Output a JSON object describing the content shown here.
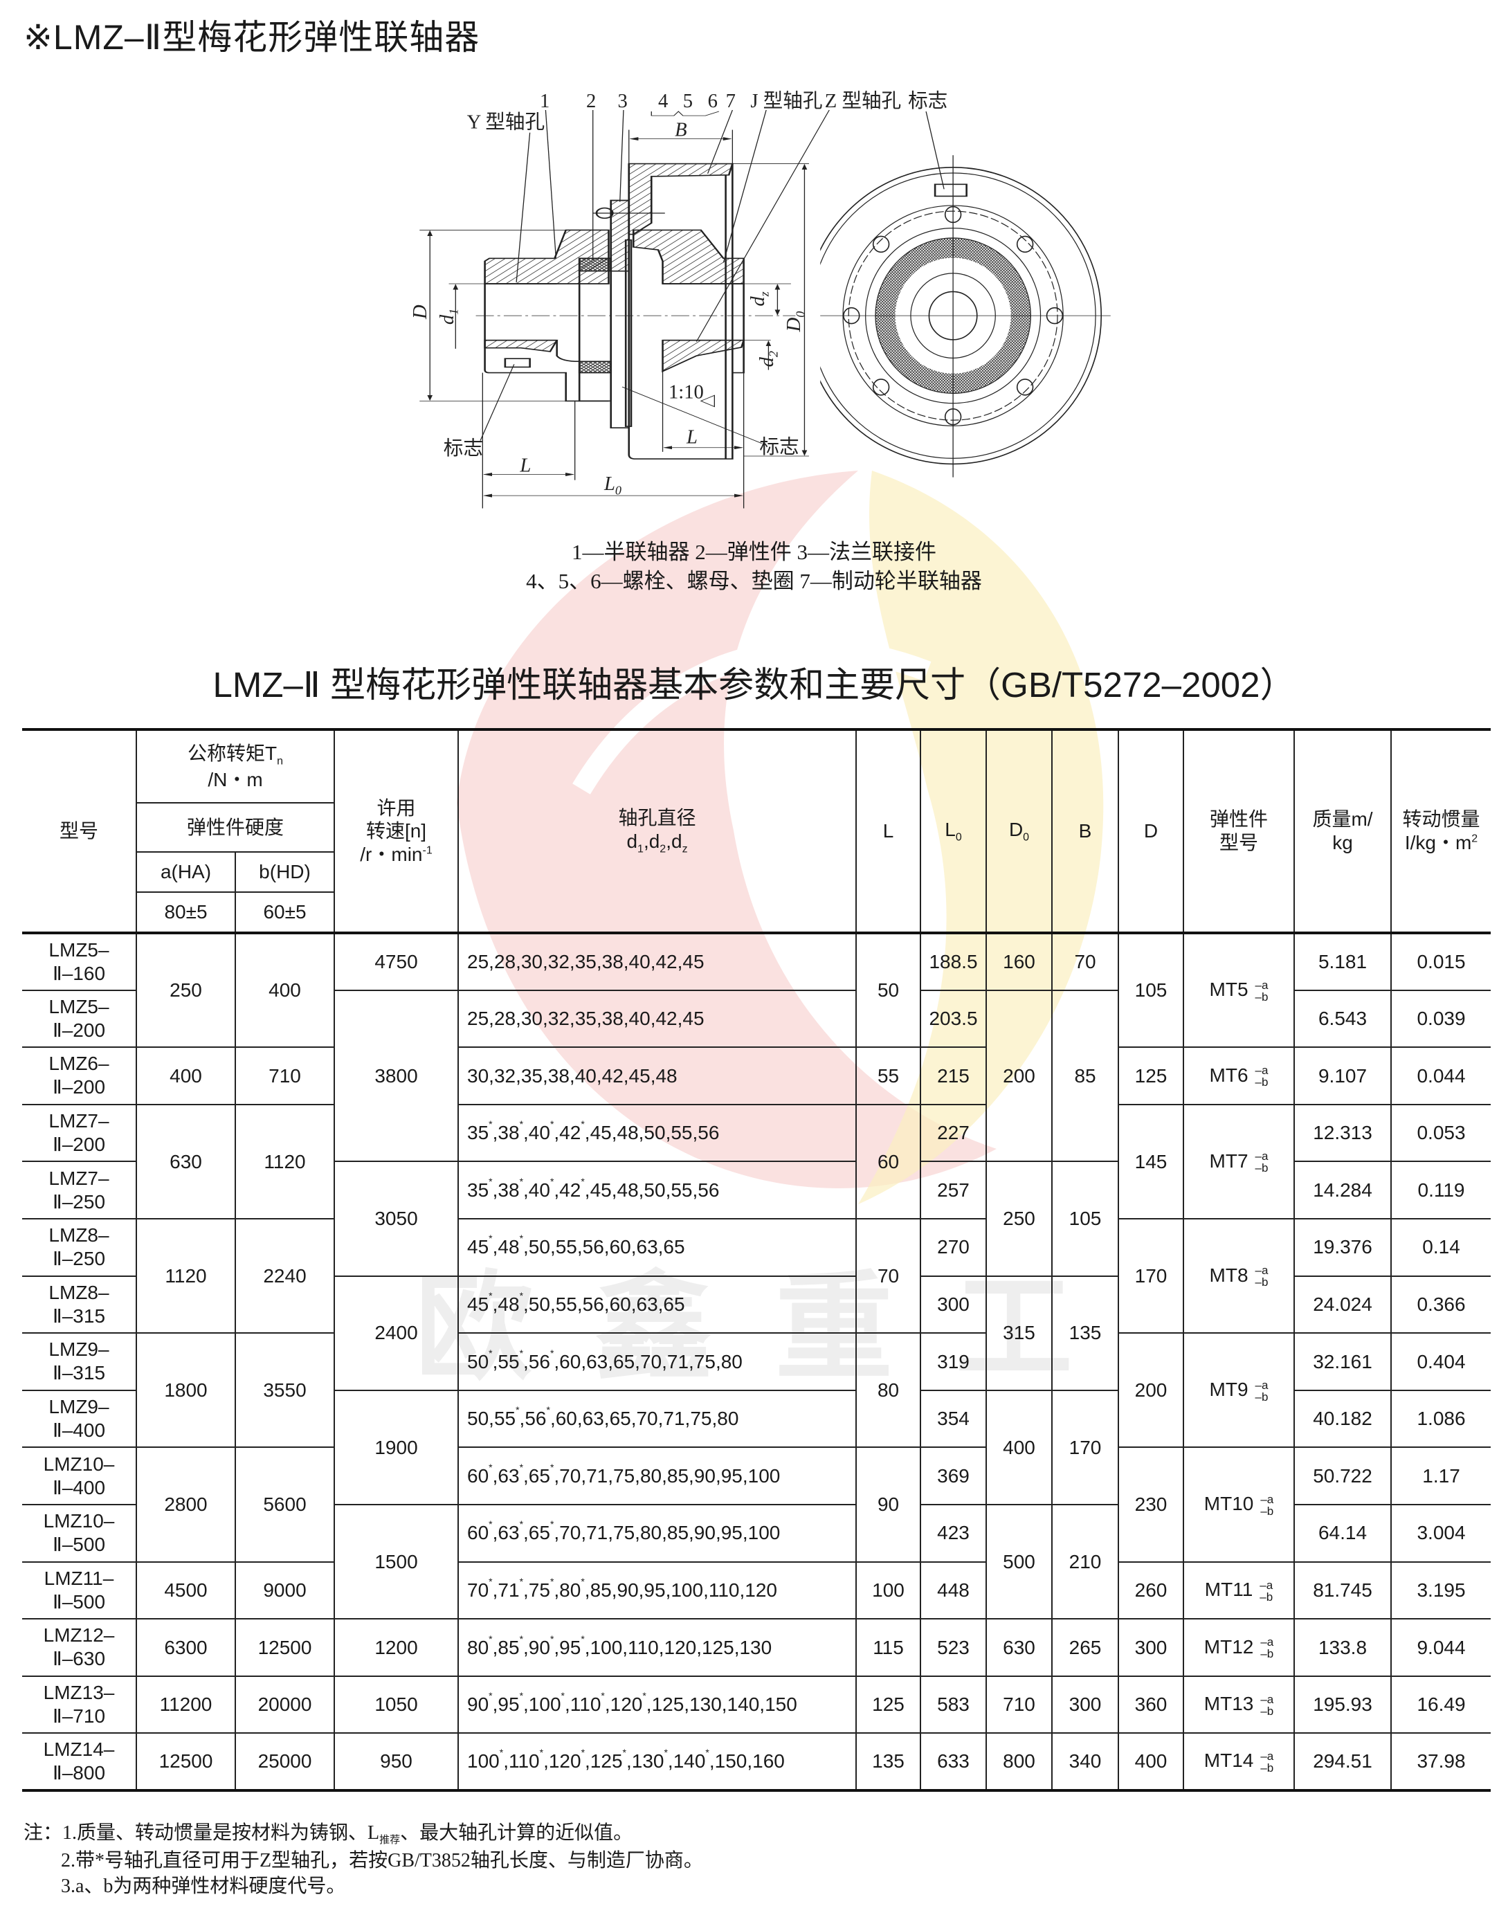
{
  "page_title": "※LMZ–Ⅱ型梅花形弹性联轴器",
  "watermark": {
    "text": "欧鑫重工",
    "logo_colors": [
      "#f6c9c6",
      "#fbefc0"
    ]
  },
  "diagram": {
    "labels": {
      "y_bore": "Y 型轴孔",
      "p1": "1",
      "p2": "2",
      "p3": "3",
      "p4": "4",
      "p5": "5",
      "p6": "6",
      "p7": "7",
      "j_bore": "J 型轴孔",
      "z_bore": "Z 型轴孔",
      "mark_top": "标志",
      "mark_left": "标志",
      "mark_right": "标志",
      "B": "B",
      "D": "D",
      "d1": "d",
      "d1_sub": "1",
      "dz": "d",
      "dz_sub": "z",
      "D0": "D",
      "D0_sub": "0",
      "d2": "d",
      "d2_sub": "2",
      "taper": "1:10",
      "L_left": "L",
      "L_right": "L",
      "L0": "L",
      "L0_sub": "0"
    },
    "legend_line1": "1—半联轴器  2—弹性件  3—法兰联接件",
    "legend_line2": "4、5、6—螺栓、螺母、垫圈   7—制动轮半联轴器"
  },
  "table_title": "LMZ–Ⅱ 型梅花形弹性联轴器基本参数和主要尺寸（GB/T5272–2002）",
  "table": {
    "headers": {
      "model": "型号",
      "torque": "公称转矩T",
      "torque_sub": "n",
      "torque_unit": "/N・m",
      "hardness": "弹性件硬度",
      "a": "a(HA)",
      "b": "b(HD)",
      "a_val": "80±5",
      "b_val": "60±5",
      "speed_1": "许用",
      "speed_2": "转速[n]",
      "speed_3": "/r・min",
      "speed_sup": "-1",
      "bore_1": "轴孔直径",
      "bore_2": "d",
      "bore_subs": [
        "1",
        "2",
        "z"
      ],
      "L": "L",
      "L0": "L",
      "L0_sub": "0",
      "D0": "D",
      "D0_sub": "0",
      "B": "B",
      "D": "D",
      "elastic_1": "弹性件",
      "elastic_2": "型号",
      "mass_1": "质量m/",
      "mass_2": "kg",
      "inertia_1": "转动惯量",
      "inertia_2": "I/kg・m",
      "inertia_sup": "2"
    },
    "columns": [
      "model",
      "torque_a",
      "torque_b",
      "speed",
      "bore_diameters",
      "L",
      "L0",
      "D0",
      "B",
      "D",
      "elastic",
      "mass",
      "inertia"
    ],
    "rows": [
      [
        [
          "LMZ5–",
          "Ⅱ–160"
        ],
        [
          "250",
          2
        ],
        [
          "400",
          2
        ],
        "4750",
        "25,28,30,32,35,38,40,42,45",
        [
          "50",
          2
        ],
        "188.5",
        "160",
        "70",
        [
          "105",
          2
        ],
        {
          "v": "MT5",
          "a": "–a",
          "b": "–b",
          "rs": 2
        },
        "5.181",
        "0.015"
      ],
      [
        [
          "LMZ5–",
          "Ⅱ–200"
        ],
        [
          "3800",
          3
        ],
        "25,28,30,32,35,38,40,42,45",
        "203.5",
        [
          "200",
          3
        ],
        [
          "85",
          3
        ],
        "6.543",
        "0.039"
      ],
      [
        [
          "LMZ6–",
          "Ⅱ–200"
        ],
        "400",
        "710",
        "30,32,35,38,40,42,45,48",
        "55",
        "215",
        "125",
        {
          "v": "MT6",
          "a": "–a",
          "b": "–b",
          "rs": 1
        },
        "9.107",
        "0.044"
      ],
      [
        [
          "LMZ7–",
          "Ⅱ–200"
        ],
        [
          "630",
          2
        ],
        [
          "1120",
          2
        ],
        "35*,38*,40*,42*,45,48,50,55,56",
        [
          "60",
          2
        ],
        "227",
        [
          "145",
          2
        ],
        {
          "v": "MT7",
          "a": "–a",
          "b": "–b",
          "rs": 2
        },
        "12.313",
        "0.053"
      ],
      [
        [
          "LMZ7–",
          "Ⅱ–250"
        ],
        [
          "3050",
          2
        ],
        "35*,38*,40*,42*,45,48,50,55,56",
        "257",
        [
          "250",
          2
        ],
        [
          "105",
          2
        ],
        "14.284",
        "0.119"
      ],
      [
        [
          "LMZ8–",
          "Ⅱ–250"
        ],
        [
          "1120",
          2
        ],
        [
          "2240",
          2
        ],
        "45*,48*,50,55,56,60,63,65",
        [
          "70",
          2
        ],
        "270",
        [
          "170",
          2
        ],
        {
          "v": "MT8",
          "a": "–a",
          "b": "–b",
          "rs": 2
        },
        "19.376",
        "0.14"
      ],
      [
        [
          "LMZ8–",
          "Ⅱ–315"
        ],
        [
          "2400",
          2
        ],
        "45*,48*,50,55,56,60,63,65",
        "300",
        [
          "315",
          2
        ],
        [
          "135",
          2
        ],
        "24.024",
        "0.366"
      ],
      [
        [
          "LMZ9–",
          "Ⅱ–315"
        ],
        [
          "1800",
          2
        ],
        [
          "3550",
          2
        ],
        "50*,55*,56*,60,63,65,70,71,75,80",
        [
          "80",
          2
        ],
        "319",
        [
          "200",
          2
        ],
        {
          "v": "MT9",
          "a": "–a",
          "b": "–b",
          "rs": 2
        },
        "32.161",
        "0.404"
      ],
      [
        [
          "LMZ9–",
          "Ⅱ–400"
        ],
        [
          "1900",
          2
        ],
        "50,55*,56*,60,63,65,70,71,75,80",
        "354",
        [
          "400",
          2
        ],
        [
          "170",
          2
        ],
        "40.182",
        "1.086"
      ],
      [
        [
          "LMZ10–",
          "Ⅱ–400"
        ],
        [
          "2800",
          2
        ],
        [
          "5600",
          2
        ],
        "60*,63*,65*,70,71,75,80,85,90,95,100",
        [
          "90",
          2
        ],
        "369",
        [
          "230",
          2
        ],
        {
          "v": "MT10",
          "a": "–a",
          "b": "–b",
          "rs": 2
        },
        "50.722",
        "1.17"
      ],
      [
        [
          "LMZ10–",
          "Ⅱ–500"
        ],
        [
          "1500",
          2
        ],
        "60*,63*,65*,70,71,75,80,85,90,95,100",
        "423",
        [
          "500",
          2
        ],
        [
          "210",
          2
        ],
        "64.14",
        "3.004"
      ],
      [
        [
          "LMZ11–",
          "Ⅱ–500"
        ],
        "4500",
        "9000",
        "70*,71*,75*,80*,85,90,95,100,110,120",
        "100",
        "448",
        "260",
        {
          "v": "MT11",
          "a": "–a",
          "b": "–b",
          "rs": 1
        },
        "81.745",
        "3.195"
      ],
      [
        [
          "LMZ12–",
          "Ⅱ–630"
        ],
        "6300",
        "12500",
        "1200",
        "80*,85*,90*,95*,100,110,120,125,130",
        "115",
        "523",
        "630",
        "265",
        "300",
        {
          "v": "MT12",
          "a": "–a",
          "b": "–b",
          "rs": 1
        },
        "133.8",
        "9.044"
      ],
      [
        [
          "LMZ13–",
          "Ⅱ–710"
        ],
        "11200",
        "20000",
        "1050",
        "90*,95*,100*,110*,120*,125,130,140,150",
        "125",
        "583",
        "710",
        "300",
        "360",
        {
          "v": "MT13",
          "a": "–a",
          "b": "–b",
          "rs": 1
        },
        "195.93",
        "16.49"
      ],
      [
        [
          "LMZ14–",
          "Ⅱ–800"
        ],
        "12500",
        "25000",
        "950",
        "100*,110*,120*,125*,130*,140*,150,160",
        "135",
        "633",
        "800",
        "340",
        "400",
        {
          "v": "MT14",
          "a": "–a",
          "b": "–b",
          "rs": 1
        },
        "294.51",
        "37.98"
      ]
    ]
  },
  "notes": {
    "line1_a": "注：1.质量、转动惯量是按材料为铸钢、L",
    "line1_sub": "推荐",
    "line1_b": "、最大轴孔计算的近似值。",
    "line2": "2.带*号轴孔直径可用于Z型轴孔，若按GB/T3852轴孔长度、与制造厂协商。",
    "line3": "3.a、b为两种弹性材料硬度代号。"
  }
}
